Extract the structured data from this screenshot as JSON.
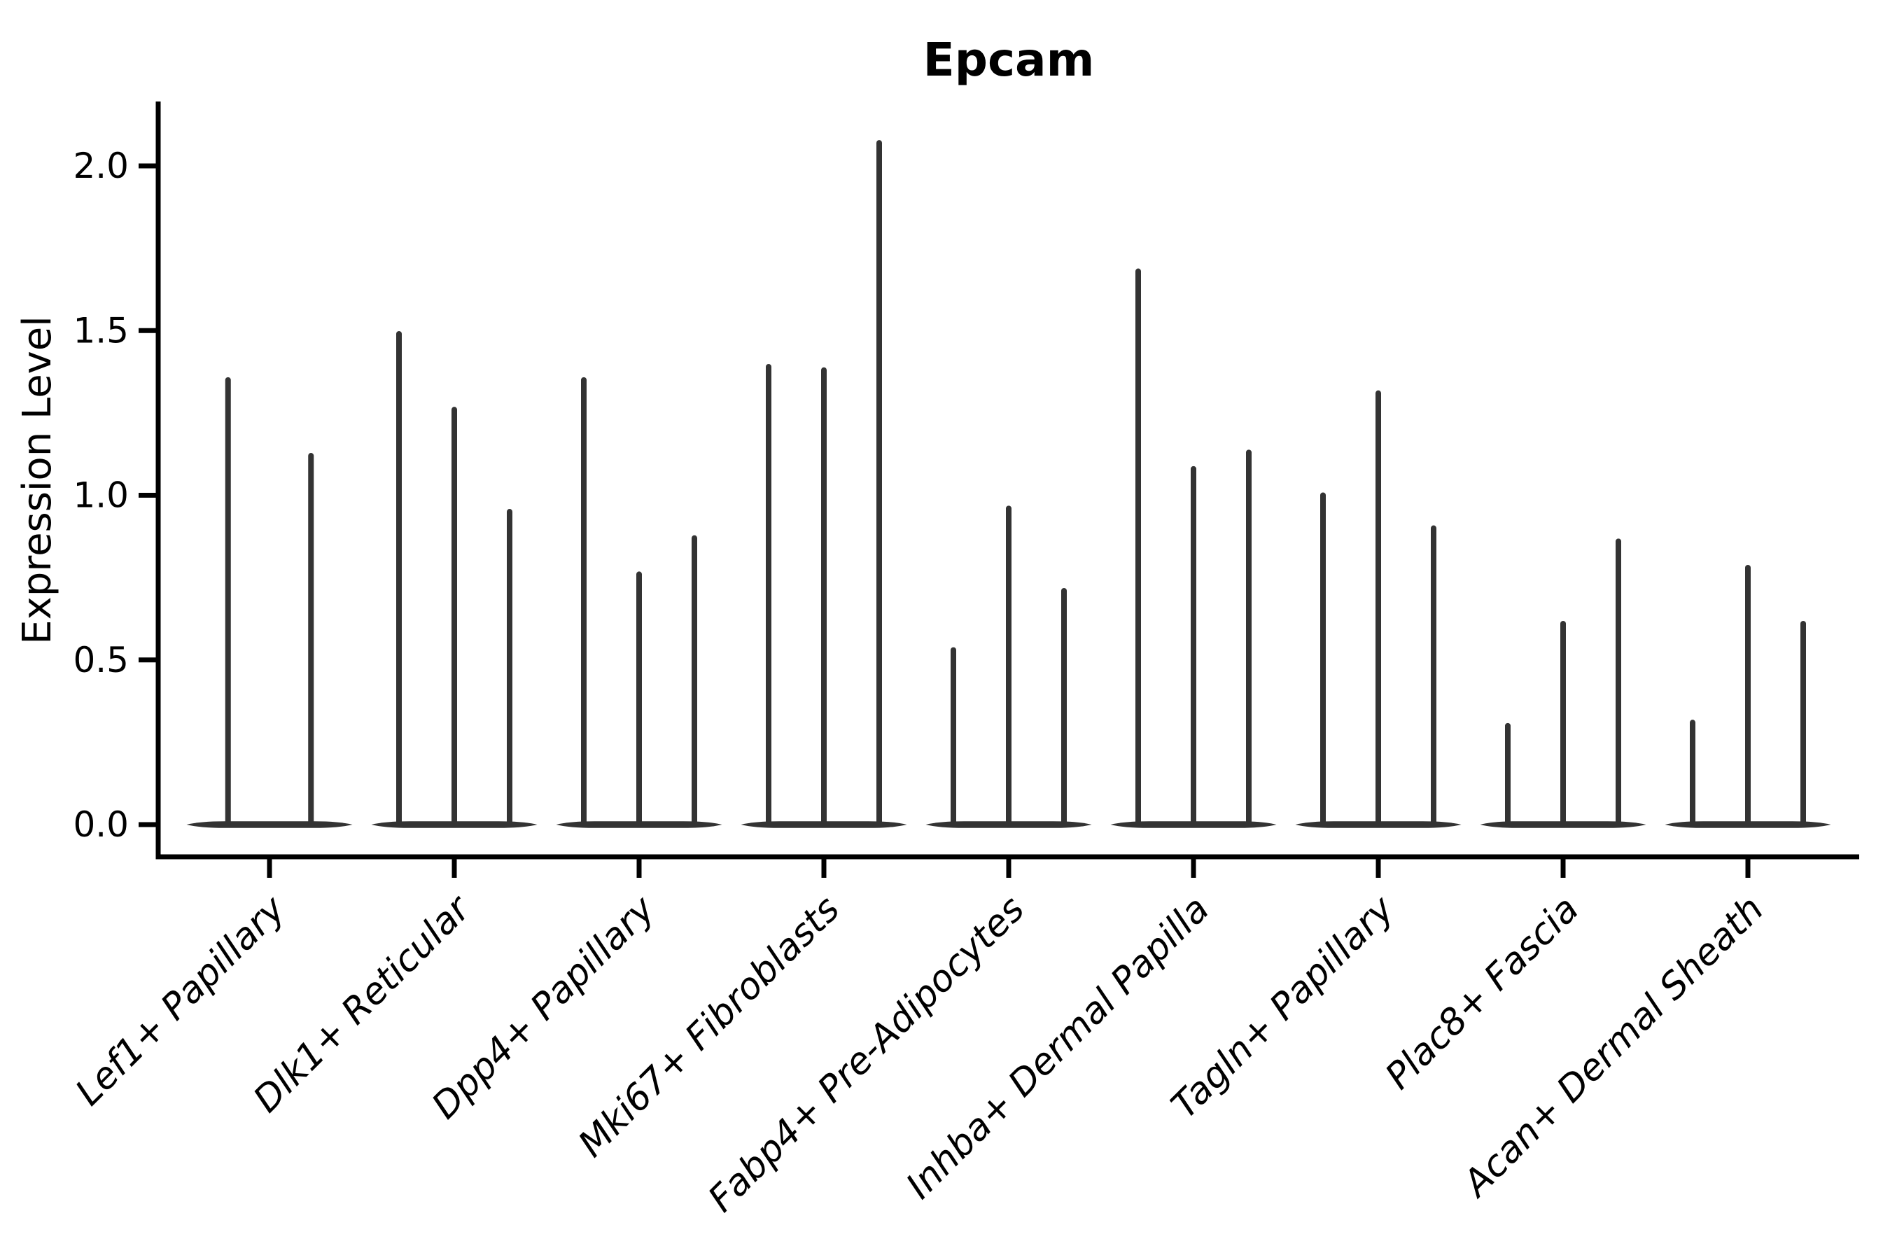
{
  "chart_data": {
    "type": "violin",
    "title": "Epcam",
    "ylabel": "Expression Level",
    "xlabel": "",
    "ylim": [
      0,
      2.19
    ],
    "yticks": [
      0.0,
      0.5,
      1.0,
      1.5,
      2.0
    ],
    "ytick_labels": [
      "0.0",
      "0.5",
      "1.0",
      "1.5",
      "2.0"
    ],
    "grid": false,
    "legend": false,
    "categories": [
      "Lef1+ Papillary",
      "Dlk1+ Reticular",
      "Dpp4+ Papillary",
      "Mki67+ Fibroblasts",
      "Fabp4+ Pre-Adipocytes",
      "Inhba+ Dermal Papilla",
      "Tagln+ Papillary",
      "Plac8+ Fascia",
      "Acan+ Dermal Sheath"
    ],
    "groups": [
      {
        "label": "Lef1+ Papillary",
        "violin_peaks": [
          1.35,
          1.12
        ]
      },
      {
        "label": "Dlk1+ Reticular",
        "violin_peaks": [
          1.49,
          1.26,
          0.95
        ]
      },
      {
        "label": "Dpp4+ Papillary",
        "violin_peaks": [
          1.35,
          0.76,
          0.87
        ]
      },
      {
        "label": "Mki67+ Fibroblasts",
        "violin_peaks": [
          1.39,
          1.38,
          2.07
        ]
      },
      {
        "label": "Fabp4+ Pre-Adipocytes",
        "violin_peaks": [
          0.53,
          0.96,
          0.71
        ]
      },
      {
        "label": "Inhba+ Dermal Papilla",
        "violin_peaks": [
          1.68,
          1.08,
          1.13
        ]
      },
      {
        "label": "Tagln+ Papillary",
        "violin_peaks": [
          1.0,
          1.31,
          0.9
        ]
      },
      {
        "label": "Plac8+ Fascia",
        "violin_peaks": [
          0.3,
          0.61,
          0.86
        ]
      },
      {
        "label": "Acan+ Dermal Sheath",
        "violin_peaks": [
          0.31,
          0.78,
          0.61
        ]
      }
    ],
    "violin_shape_note": "each violin is a needle: flat base lens at 0 plus thin spike to its peak value",
    "colors": {
      "violin": "#333333",
      "axis": "#000000",
      "text": "#000000",
      "background": "#ffffff"
    }
  }
}
